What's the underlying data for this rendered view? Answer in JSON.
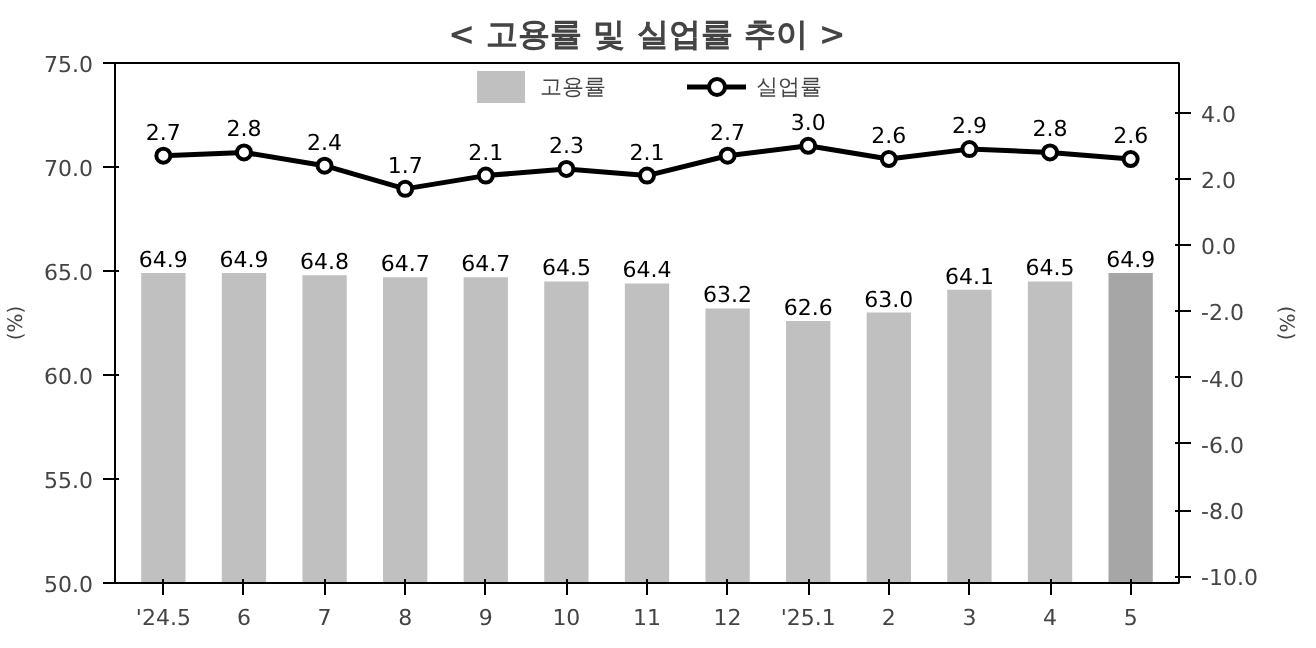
{
  "chart_data": {
    "type": "bar",
    "title": "< 고용률 및 실업률 추이 >",
    "ylabel": "(%)",
    "y2label": "(%)",
    "categories": [
      "'24.5",
      "6",
      "7",
      "8",
      "9",
      "10",
      "11",
      "12",
      "'25.1",
      "2",
      "3",
      "4",
      "5"
    ],
    "series": [
      {
        "name": "고용률",
        "colors": [
          "#c0c0c0",
          "#c0c0c0",
          "#c0c0c0",
          "#c0c0c0",
          "#c0c0c0",
          "#c0c0c0",
          "#c0c0c0",
          "#c0c0c0",
          "#c0c0c0",
          "#c0c0c0",
          "#c0c0c0",
          "#c0c0c0",
          "#a6a6a6"
        ],
        "values": [
          64.9,
          64.9,
          64.8,
          64.7,
          64.7,
          64.5,
          64.4,
          63.2,
          62.6,
          63.0,
          64.1,
          64.5,
          64.9
        ],
        "value_labels": [
          "64.9",
          "64.9",
          "64.8",
          "64.7",
          "64.7",
          "64.5",
          "64.4",
          "63.2",
          "62.6",
          "63.0",
          "64.1",
          "64.5",
          "64.9"
        ]
      },
      {
        "name": "실업률",
        "type": "line",
        "color": "#000000",
        "axis": "y2",
        "marker": "circle",
        "values": [
          2.7,
          2.8,
          2.4,
          1.7,
          2.1,
          2.3,
          2.1,
          2.7,
          3.0,
          2.6,
          2.9,
          2.8,
          2.6
        ],
        "value_labels": [
          "2.7",
          "2.8",
          "2.4",
          "1.7",
          "2.1",
          "2.3",
          "2.1",
          "2.7",
          "3.0",
          "2.6",
          "2.9",
          "2.8",
          "2.6"
        ]
      }
    ],
    "ylim": [
      50,
      75
    ],
    "yticks": [
      {
        "value": 50,
        "label": "50.0"
      },
      {
        "value": 55,
        "label": "55.0"
      },
      {
        "value": 60,
        "label": "60.0"
      },
      {
        "value": 65,
        "label": "65.0"
      },
      {
        "value": 70,
        "label": "70.0"
      },
      {
        "value": 75,
        "label": "75.0"
      }
    ],
    "y2lim": [
      -10.2,
      5.5
    ],
    "y2ticks": [
      {
        "value": -10,
        "label": "-10.0"
      },
      {
        "value": -8,
        "label": "-8.0"
      },
      {
        "value": -6,
        "label": "-6.0"
      },
      {
        "value": -4,
        "label": "-4.0"
      },
      {
        "value": -2,
        "label": "-2.0"
      },
      {
        "value": 0,
        "label": "0.0"
      },
      {
        "value": 2,
        "label": "2.0"
      },
      {
        "value": 4,
        "label": "4.0"
      }
    ],
    "legend": "top"
  }
}
